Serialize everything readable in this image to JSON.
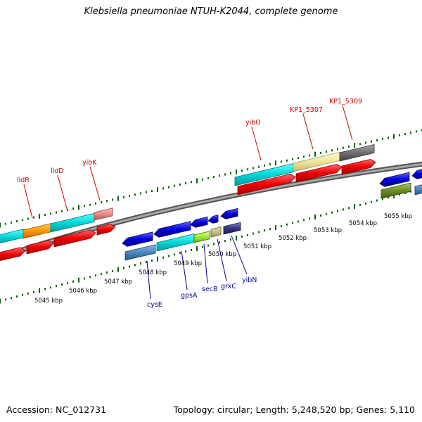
{
  "header": {
    "title": "Klebsiella pneumoniae NTUH-K2044, complete genome"
  },
  "footer": {
    "accession": "Accession: NC_012731",
    "topology": "Topology: circular; Length: 5,248,520 bp; Genes: 5,110"
  },
  "scale_labels": [
    "5045 kbp",
    "5046 kbp",
    "5047 kbp",
    "5048 kbp",
    "5049 kbp",
    "5050 kbp",
    "5051 kbp",
    "5052 kbp",
    "5053 kbp",
    "5054 kbp",
    "5055 kbp"
  ],
  "gene_labels_top": [
    "lldR",
    "lldD",
    "yibK",
    "yibO",
    "KP1_5307",
    "KP1_5309"
  ],
  "gene_labels_bottom": [
    "cysE",
    "gpsA",
    "secB",
    "grxC",
    "yibN"
  ],
  "colors": {
    "forward_label": "#cc0000",
    "reverse_label": "#000099",
    "backbone": "#888888",
    "tick": "#006600",
    "cyan": "#00cccc",
    "red": "#ee0000",
    "blue": "#0000cc"
  }
}
